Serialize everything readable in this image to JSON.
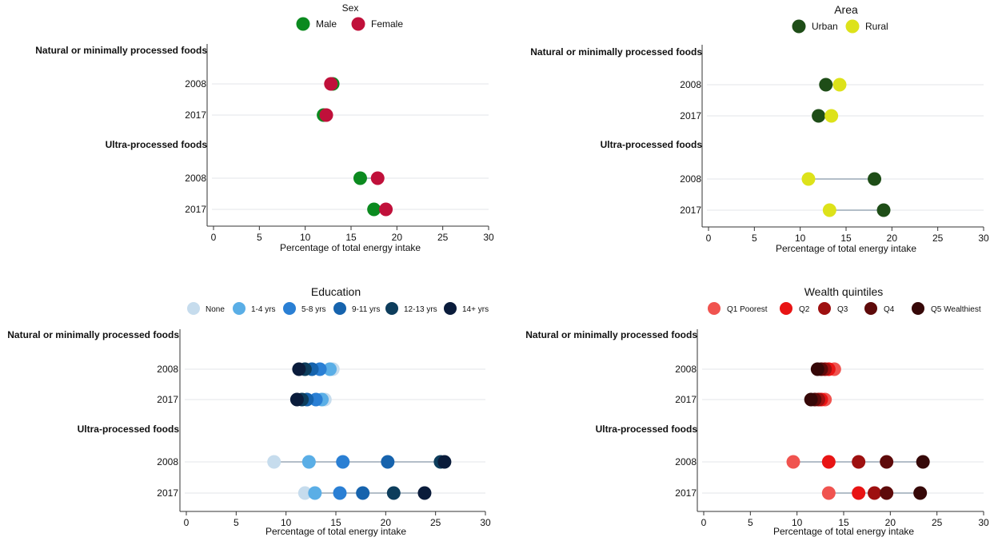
{
  "chart_data": [
    {
      "type": "dot",
      "title": "Sex",
      "xlabel": "Percentage of total energy intake",
      "xlim": [
        0,
        30
      ],
      "xticks": [
        "0",
        "5",
        "10",
        "15",
        "20",
        "25",
        "30"
      ],
      "xtick_values": [
        0,
        5,
        10,
        15,
        20,
        25,
        30
      ],
      "groups": [
        {
          "label": "Natural or minimally processed foods",
          "years": [
            "2008",
            "2017"
          ]
        },
        {
          "label": "Ultra-processed foods",
          "years": [
            "2008",
            "2017"
          ]
        }
      ],
      "series": [
        {
          "name": "Male",
          "color": "#0b8a1f",
          "values": [
            13.0,
            12.0,
            16.0,
            17.5
          ]
        },
        {
          "name": "Female",
          "color": "#c0103a",
          "values": [
            12.8,
            12.3,
            17.9,
            18.8
          ]
        }
      ]
    },
    {
      "type": "dot",
      "title": "Area",
      "xlabel": "Percentage of total energy intake",
      "xlim": [
        0,
        30
      ],
      "xticks": [
        "0",
        "5",
        "10",
        "15",
        "20",
        "25",
        "30"
      ],
      "xtick_values": [
        0,
        5,
        10,
        15,
        20,
        25,
        30
      ],
      "groups": [
        {
          "label": "Natural or minimally processed foods",
          "years": [
            "2008",
            "2017"
          ]
        },
        {
          "label": "Ultra-processed foods",
          "years": [
            "2008",
            "2017"
          ]
        }
      ],
      "series": [
        {
          "name": "Urban",
          "color": "#1e4d17",
          "values": [
            12.8,
            12.0,
            18.1,
            19.1
          ]
        },
        {
          "name": "Rural",
          "color": "#dde21a",
          "values": [
            14.3,
            13.4,
            10.9,
            13.2
          ]
        }
      ]
    },
    {
      "type": "dot",
      "title": "Education",
      "xlabel": "Percentage of total energy intake",
      "xlim": [
        0,
        30
      ],
      "xticks": [
        "0",
        "5",
        "10",
        "15",
        "20",
        "25",
        "30"
      ],
      "xtick_values": [
        0,
        5,
        10,
        15,
        20,
        25,
        30
      ],
      "groups": [
        {
          "label": "Natural or minimally processed foods",
          "years": [
            "2008",
            "2017"
          ]
        },
        {
          "label": "Ultra-processed foods",
          "years": [
            "2008",
            "2017"
          ]
        }
      ],
      "series": [
        {
          "name": "None",
          "color": "#c6dced",
          "values": [
            14.7,
            13.9,
            8.8,
            11.9
          ]
        },
        {
          "name": "1-4 yrs",
          "color": "#5aaee6",
          "values": [
            14.4,
            13.6,
            12.3,
            12.9
          ]
        },
        {
          "name": "5-8 yrs",
          "color": "#2a7fd4",
          "values": [
            13.4,
            13.0,
            15.7,
            15.4
          ]
        },
        {
          "name": "9-11 yrs",
          "color": "#1663ad",
          "values": [
            12.6,
            12.1,
            20.2,
            17.7
          ]
        },
        {
          "name": "12-13 yrs",
          "color": "#0d3d5c",
          "values": [
            11.9,
            11.6,
            25.5,
            20.8
          ]
        },
        {
          "name": "14+ yrs",
          "color": "#0a1c3b",
          "values": [
            11.3,
            11.1,
            25.9,
            23.9
          ]
        }
      ]
    },
    {
      "type": "dot",
      "title": "Wealth quintiles",
      "xlabel": "Percentage of total energy intake",
      "xlim": [
        0,
        30
      ],
      "xticks": [
        "0",
        "5",
        "10",
        "15",
        "20",
        "25",
        "30"
      ],
      "xtick_values": [
        0,
        5,
        10,
        15,
        20,
        25,
        30
      ],
      "groups": [
        {
          "label": "Natural or minimally processed foods",
          "years": [
            "2008",
            "2017"
          ]
        },
        {
          "label": "Ultra-processed foods",
          "years": [
            "2008",
            "2017"
          ]
        }
      ],
      "series": [
        {
          "name": "Q1 Poorest",
          "color": "#f0534f",
          "values": [
            14.0,
            13.0,
            9.6,
            13.4
          ]
        },
        {
          "name": "Q2",
          "color": "#e81414",
          "values": [
            13.4,
            12.6,
            13.4,
            16.6
          ]
        },
        {
          "name": "Q3",
          "color": "#9e1010",
          "values": [
            13.0,
            12.3,
            16.6,
            18.3
          ]
        },
        {
          "name": "Q4",
          "color": "#5e0a0a",
          "values": [
            12.6,
            11.9,
            19.6,
            19.6
          ]
        },
        {
          "name": "Q5 Wealthiest",
          "color": "#360808",
          "values": [
            12.2,
            11.5,
            23.5,
            23.2
          ]
        }
      ]
    }
  ]
}
